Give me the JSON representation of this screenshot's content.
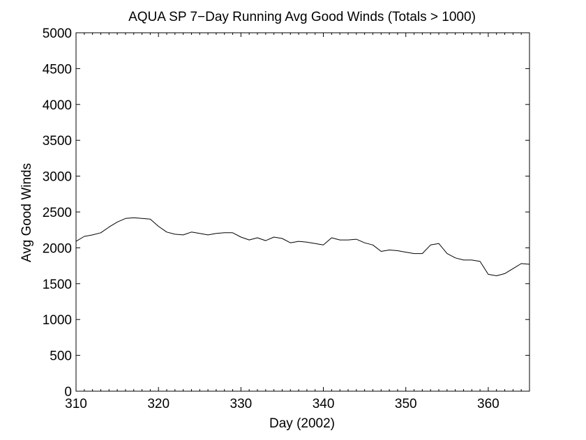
{
  "chart_data": {
    "type": "line",
    "title": "AQUA SP 7−Day Running Avg Good Winds (Totals > 1000)",
    "xlabel": "Day (2002)",
    "ylabel": "Avg Good Winds",
    "xlim": [
      310,
      365
    ],
    "ylim": [
      0,
      5000
    ],
    "x_ticks": [
      310,
      320,
      330,
      340,
      350,
      360
    ],
    "y_ticks": [
      0,
      500,
      1000,
      1500,
      2000,
      2500,
      3000,
      3500,
      4000,
      4500,
      5000
    ],
    "x_tick_labels": [
      "310",
      "320",
      "330",
      "340",
      "350",
      "360"
    ],
    "y_tick_labels": [
      "0",
      "500",
      "1000",
      "1500",
      "2000",
      "2500",
      "3000",
      "3500",
      "4000",
      "4500",
      "5000"
    ],
    "grid": false,
    "series": [
      {
        "line_color": "#000000",
        "x": [
          310,
          311,
          312,
          313,
          314,
          315,
          316,
          317,
          318,
          319,
          320,
          321,
          322,
          323,
          324,
          325,
          326,
          327,
          328,
          329,
          330,
          331,
          332,
          333,
          334,
          335,
          336,
          337,
          338,
          339,
          340,
          341,
          342,
          343,
          344,
          345,
          346,
          347,
          348,
          349,
          350,
          351,
          352,
          353,
          354,
          355,
          356,
          357,
          358,
          359,
          360,
          361,
          362,
          363,
          364,
          365
        ],
        "y": [
          2090,
          2160,
          2180,
          2210,
          2290,
          2360,
          2410,
          2420,
          2410,
          2400,
          2300,
          2220,
          2190,
          2180,
          2220,
          2200,
          2180,
          2200,
          2210,
          2210,
          2150,
          2110,
          2140,
          2100,
          2150,
          2130,
          2070,
          2090,
          2080,
          2060,
          2040,
          2140,
          2110,
          2110,
          2120,
          2070,
          2040,
          1950,
          1970,
          1960,
          1940,
          1920,
          1920,
          2040,
          2060,
          1920,
          1860,
          1830,
          1830,
          1810,
          1630,
          1610,
          1640,
          1710,
          1780,
          1770
        ]
      }
    ]
  }
}
